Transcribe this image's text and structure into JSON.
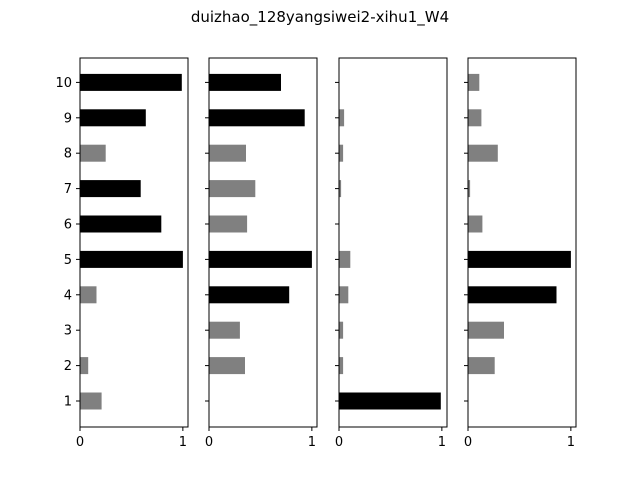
{
  "chart_data": {
    "type": "bar",
    "orientation": "horizontal",
    "title": "duizhao_128yangsiwei2-xihu1_W4",
    "categories": [
      "1",
      "2",
      "3",
      "4",
      "5",
      "6",
      "7",
      "8",
      "9",
      "10"
    ],
    "xlim": [
      0,
      1.05
    ],
    "xticks": [
      "0",
      "1"
    ],
    "colors": {
      "dark": "#000000",
      "light": "#808080"
    },
    "grid": false,
    "panels": [
      {
        "values": [
          0.21,
          0.08,
          0.0,
          0.16,
          1.0,
          0.79,
          0.59,
          0.25,
          0.64,
          0.99
        ],
        "bar_color": [
          "light",
          "light",
          "light",
          "light",
          "dark",
          "dark",
          "dark",
          "light",
          "dark",
          "dark"
        ]
      },
      {
        "values": [
          0.0,
          0.35,
          0.3,
          0.78,
          1.0,
          0.37,
          0.45,
          0.36,
          0.93,
          0.7
        ],
        "bar_color": [
          "light",
          "light",
          "light",
          "dark",
          "dark",
          "light",
          "light",
          "light",
          "dark",
          "dark"
        ]
      },
      {
        "values": [
          0.99,
          0.04,
          0.04,
          0.09,
          0.11,
          0.0,
          0.02,
          0.04,
          0.05,
          0.0
        ],
        "bar_color": [
          "dark",
          "light",
          "light",
          "light",
          "light",
          "light",
          "light",
          "light",
          "light",
          "light"
        ]
      },
      {
        "values": [
          0.0,
          0.26,
          0.35,
          0.86,
          1.0,
          0.14,
          0.02,
          0.29,
          0.13,
          0.11
        ],
        "bar_color": [
          "light",
          "light",
          "light",
          "dark",
          "dark",
          "light",
          "light",
          "light",
          "light",
          "light"
        ]
      }
    ]
  }
}
